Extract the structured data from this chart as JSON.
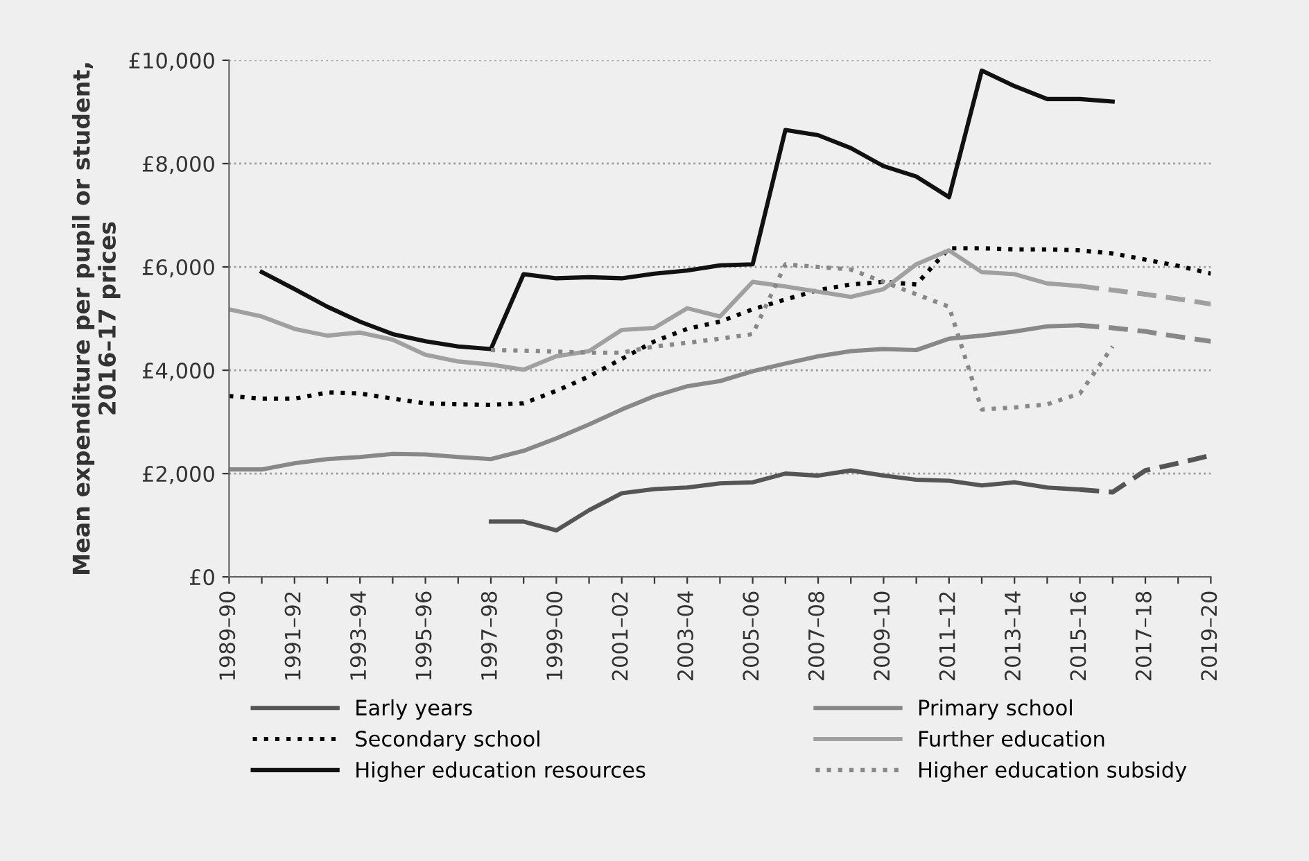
{
  "chart_data": {
    "type": "line",
    "ylabel": "Mean expenditure per pupil or student,\n2016–17 prices",
    "categories": [
      "1989–90",
      null,
      "1991–92",
      null,
      "1993–94",
      null,
      "1995–96",
      null,
      "1997–98",
      null,
      "1999–00",
      null,
      "2001–02",
      null,
      "2003–04",
      null,
      "2005–06",
      null,
      "2007–08",
      null,
      "2009–10",
      null,
      "2011–12",
      null,
      "2013–14",
      null,
      "2015–16",
      null,
      "2017–18",
      null,
      "2019–20"
    ],
    "ylim": [
      0,
      10000
    ],
    "yticks": [
      {
        "value": 0,
        "label": "£0"
      },
      {
        "value": 2000,
        "label": "£2,000"
      },
      {
        "value": 4000,
        "label": "£4,000"
      },
      {
        "value": 6000,
        "label": "£6,000"
      },
      {
        "value": 8000,
        "label": "£8,000"
      },
      {
        "value": 10000,
        "label": "£10,000"
      }
    ],
    "grid": "y",
    "legend": "bottom",
    "marker": "none",
    "series": [
      {
        "name": "Early years",
        "color": "#555555",
        "line_style": "solid",
        "values": [
          null,
          null,
          null,
          null,
          null,
          null,
          null,
          null,
          1070,
          1070,
          900,
          1290,
          1620,
          1700,
          1730,
          1810,
          1830,
          2000,
          1960,
          2060,
          1960,
          1880,
          1860,
          1770,
          1830,
          1730,
          1690,
          null,
          null,
          null,
          null
        ]
      },
      {
        "name": "Primary school",
        "color": "#888888",
        "line_style": "solid",
        "values": [
          2080,
          2080,
          2200,
          2280,
          2320,
          2380,
          2370,
          2320,
          2280,
          2440,
          2680,
          2950,
          3240,
          3500,
          3690,
          3790,
          3980,
          4130,
          4270,
          4370,
          4410,
          4390,
          4610,
          4670,
          4750,
          4850,
          4870,
          null,
          null,
          null,
          null
        ]
      },
      {
        "name": "Secondary school",
        "color": "#000000",
        "line_style": "dotted",
        "values": [
          3500,
          3450,
          3450,
          3570,
          3550,
          3450,
          3360,
          3340,
          3330,
          3360,
          3600,
          3880,
          4220,
          4560,
          4800,
          4940,
          5180,
          5370,
          5550,
          5660,
          5710,
          5660,
          6360,
          6360,
          6340,
          6340,
          6320,
          6260,
          6140,
          6020,
          5870
        ]
      },
      {
        "name": "Further education",
        "color": "#a0a0a0",
        "line_style": "solid",
        "values": [
          5180,
          5040,
          4800,
          4670,
          4730,
          4590,
          4300,
          4170,
          4110,
          4010,
          4270,
          4370,
          4780,
          4820,
          5200,
          5040,
          5710,
          5620,
          5520,
          5420,
          5570,
          6050,
          6320,
          5900,
          5860,
          5680,
          5630,
          null,
          null,
          null,
          null
        ]
      },
      {
        "name": "Higher education resources",
        "color": "#111111",
        "line_style": "solid",
        "values": [
          null,
          5900,
          5570,
          5230,
          4940,
          4700,
          4560,
          4460,
          4410,
          5860,
          5780,
          5800,
          5780,
          5870,
          5930,
          6030,
          6050,
          8650,
          8550,
          8300,
          7950,
          7750,
          7350,
          9800,
          9500,
          9250,
          9250,
          9200,
          null,
          null,
          null
        ]
      },
      {
        "name": "Higher education subsidy",
        "color": "#888888",
        "line_style": "dotted",
        "values": [
          null,
          null,
          null,
          null,
          null,
          null,
          null,
          null,
          4390,
          4380,
          4360,
          4340,
          4340,
          4460,
          4530,
          4610,
          4700,
          6050,
          6000,
          5950,
          5710,
          5470,
          5230,
          3240,
          3280,
          3340,
          3550,
          4460,
          null,
          null,
          null
        ]
      },
      {
        "color": "#555555",
        "line_style": "dashed",
        "values": [
          null,
          null,
          null,
          null,
          null,
          null,
          null,
          null,
          null,
          null,
          null,
          null,
          null,
          null,
          null,
          null,
          null,
          null,
          null,
          null,
          null,
          null,
          null,
          null,
          null,
          null,
          1690,
          1640,
          2060,
          2200,
          2350
        ]
      },
      {
        "color": "#888888",
        "line_style": "dashed",
        "values": [
          null,
          null,
          null,
          null,
          null,
          null,
          null,
          null,
          null,
          null,
          null,
          null,
          null,
          null,
          null,
          null,
          null,
          null,
          null,
          null,
          null,
          null,
          null,
          null,
          null,
          null,
          4870,
          4820,
          4750,
          4650,
          4560
        ]
      },
      {
        "color": "#a0a0a0",
        "line_style": "dashed",
        "values": [
          null,
          null,
          null,
          null,
          null,
          null,
          null,
          null,
          null,
          null,
          null,
          null,
          null,
          null,
          null,
          null,
          null,
          null,
          null,
          null,
          null,
          null,
          null,
          null,
          null,
          null,
          5630,
          5550,
          5470,
          5380,
          5280
        ]
      }
    ]
  }
}
